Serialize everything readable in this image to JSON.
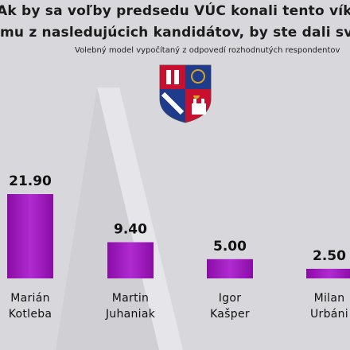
{
  "header": {
    "question_line1": "Ak by sa voľby predsedu VÚC konali tento vík",
    "question_line2": "mu z nasledujúcich kandidátov, by ste dali sv",
    "subtitle": "Volebný model vypočítaný z odpovedí rozhodnutých respondentov"
  },
  "crest": {
    "icon": "coat-of-arms-icon",
    "colors": [
      "#c8102e",
      "#1f3c8c",
      "#ffffff",
      "#d4a420"
    ]
  },
  "colors": {
    "bar": "#9b10b8",
    "bar_highlight": "#c13fdc",
    "background": "#d8d8dc"
  },
  "chart_data": {
    "type": "bar",
    "title": "",
    "xlabel": "",
    "ylabel": "",
    "ylim": [
      0,
      21.9
    ],
    "grid": false,
    "categories": [
      [
        "Marián",
        "Kotleba"
      ],
      [
        "Martin",
        "Juhaniak"
      ],
      [
        "Igor",
        "Kašper"
      ],
      [
        "Milan",
        "Urbáni"
      ]
    ],
    "values": [
      21.9,
      9.4,
      5.0,
      2.5
    ],
    "value_labels": [
      "21.90",
      "9.40",
      "5.00",
      "2.50"
    ]
  }
}
